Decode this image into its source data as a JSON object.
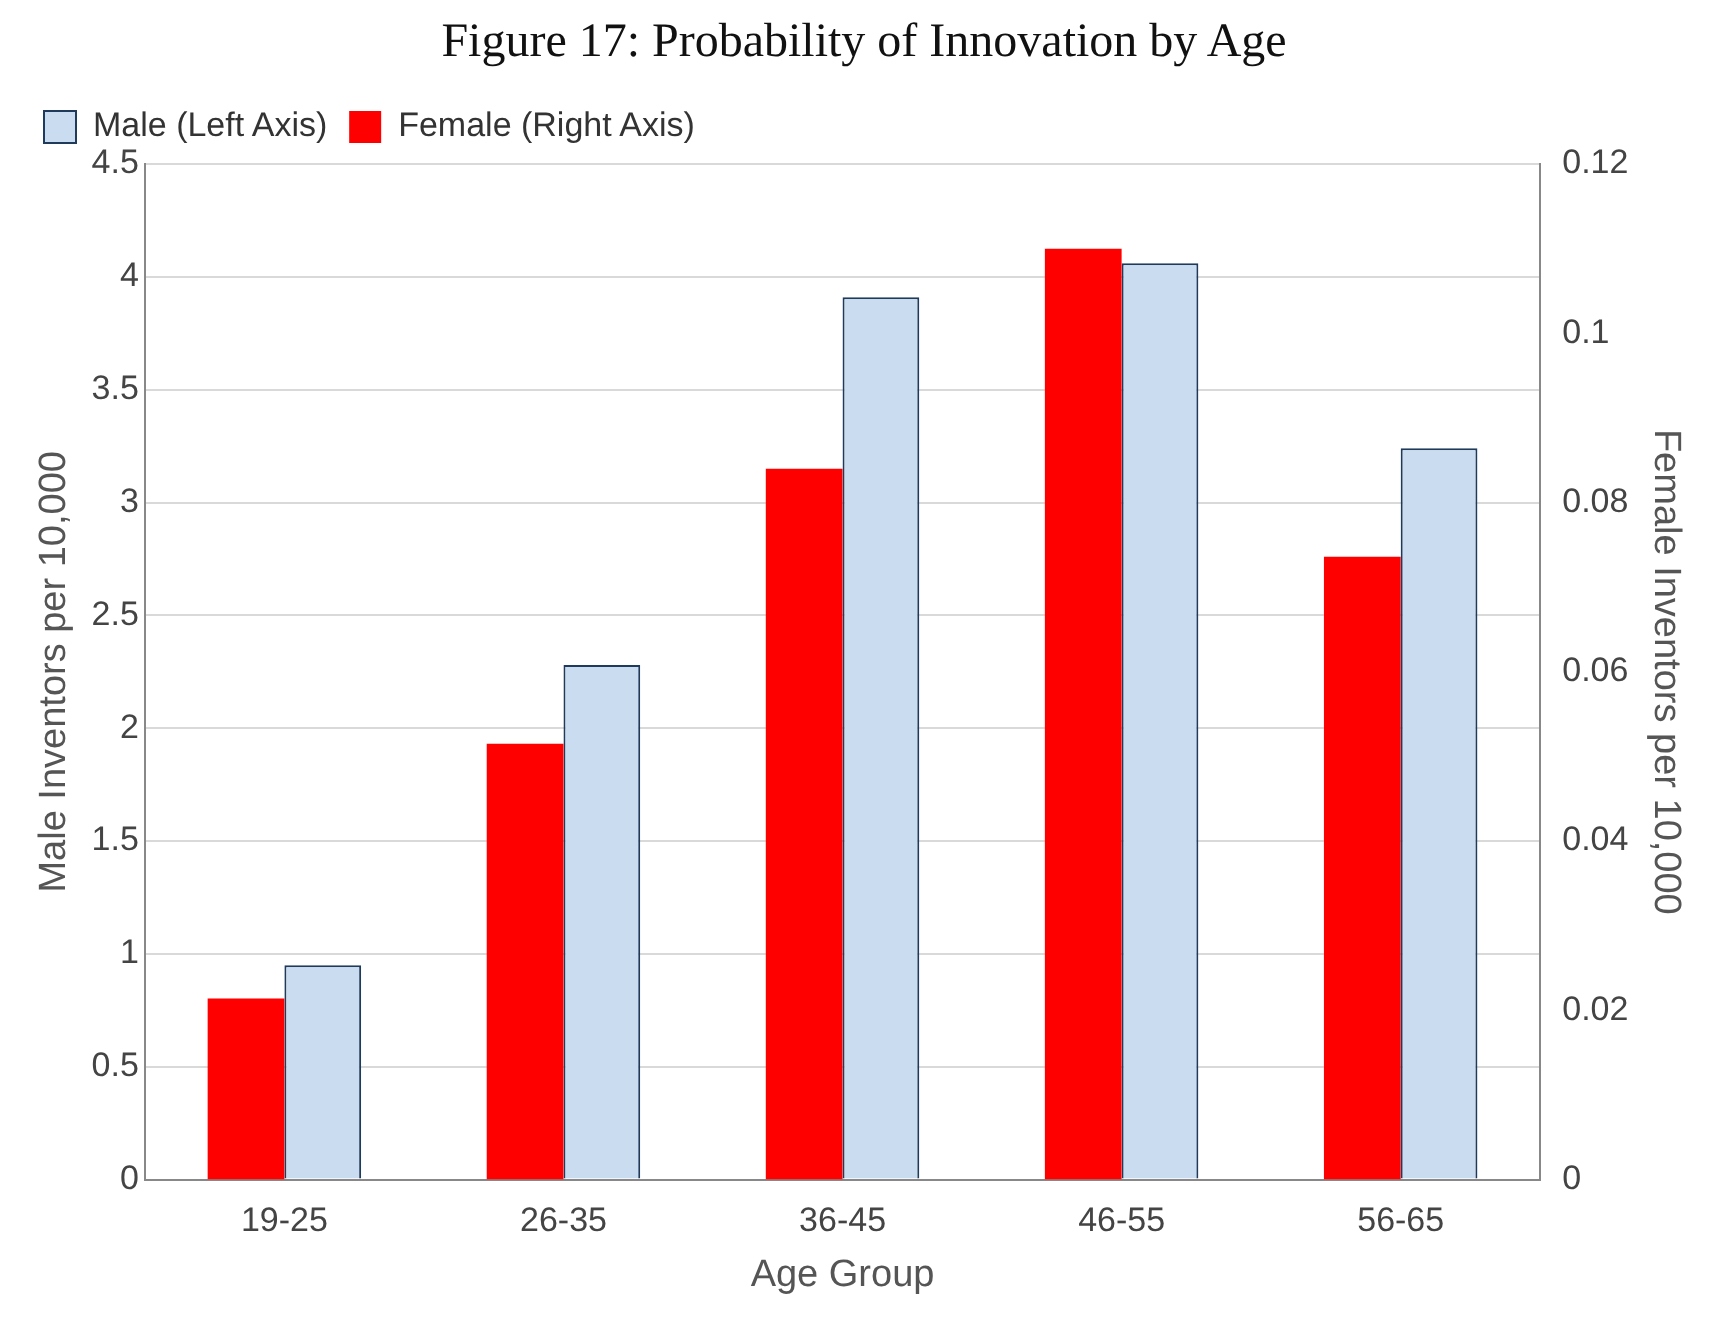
{
  "chart_data": {
    "type": "bar",
    "title": "Figure 17: Probability of Innovation by Age",
    "xlabel": "Age Group",
    "ylabel": "Male Inventors per 10,000",
    "y2label": "Female Inventors per 10,000",
    "categories": [
      "19-25",
      "26-35",
      "36-45",
      "46-55",
      "56-65"
    ],
    "series": [
      {
        "name": "Female (Right Axis)",
        "color": "#ff0000",
        "axis": "y2",
        "values": [
          0.0214,
          0.0515,
          0.084,
          0.11,
          0.0736
        ]
      },
      {
        "name": "Male (Left Axis)",
        "color": "#c9dcf0",
        "axis": "y",
        "values": [
          0.95,
          2.28,
          3.91,
          4.06,
          3.24
        ]
      }
    ],
    "ylim": [
      0,
      4.5
    ],
    "yticks": [
      0,
      0.5,
      1,
      1.5,
      2,
      2.5,
      3,
      3.5,
      4,
      4.5
    ],
    "y2lim": [
      0,
      0.12
    ],
    "y2ticks": [
      0,
      0.02,
      0.04,
      0.06,
      0.08,
      0.1,
      0.12
    ],
    "grid": "y",
    "legend": "top left"
  }
}
